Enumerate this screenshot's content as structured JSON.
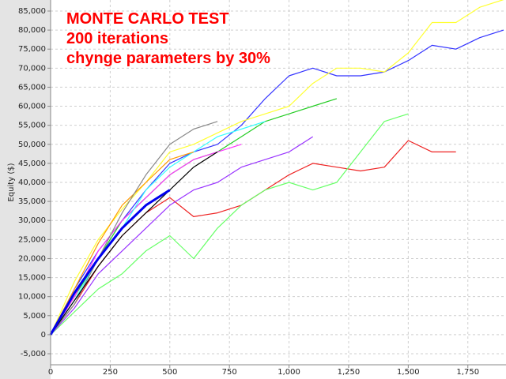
{
  "chart_data": {
    "type": "line",
    "title": "MONTE CARLO TEST",
    "annotations": [
      "200 iterations",
      "chynge parameters by 30%"
    ],
    "y_label": "Equity ($)",
    "x": [
      0,
      100,
      200,
      300,
      400,
      500,
      600,
      700,
      800,
      900,
      1000,
      1100,
      1200,
      1300,
      1400,
      1500,
      1600,
      1700,
      1800,
      1900
    ],
    "series": [
      {
        "color": "#3333ff",
        "values": [
          0,
          12000,
          22000,
          30000,
          38000,
          45000,
          48000,
          50000,
          55000,
          62000,
          68000,
          70000,
          68000,
          68000,
          69000,
          72000,
          76000,
          75000,
          78000,
          80000
        ]
      },
      {
        "color": "#ffff33",
        "values": [
          0,
          14000,
          25000,
          33000,
          40000,
          48000,
          50000,
          53000,
          56000,
          58000,
          60000,
          66000,
          70000,
          70000,
          69000,
          74000,
          82000,
          82000,
          86000,
          88000
        ]
      },
      {
        "color": "#ee2222",
        "values": [
          0,
          8000,
          18000,
          26000,
          32000,
          36000,
          31000,
          32000,
          34000,
          38000,
          42000,
          45000,
          44000,
          43000,
          44000,
          51000,
          48000,
          48000,
          null,
          null
        ]
      },
      {
        "color": "#66ff66",
        "values": [
          0,
          6000,
          12000,
          16000,
          22000,
          26000,
          20000,
          28000,
          34000,
          38000,
          40000,
          38000,
          40000,
          48000,
          56000,
          58000,
          null,
          null,
          null,
          null
        ]
      },
      {
        "color": "#22cc22",
        "values": [
          0,
          10000,
          20000,
          30000,
          36000,
          42000,
          46000,
          48000,
          52000,
          56000,
          58000,
          60000,
          62000,
          null,
          null,
          null,
          null,
          null,
          null,
          null
        ]
      },
      {
        "color": "#ff33ff",
        "values": [
          0,
          10000,
          22000,
          30000,
          36000,
          42000,
          46000,
          48000,
          50000,
          null,
          null,
          null,
          null,
          null,
          null,
          null,
          null,
          null,
          null,
          null
        ]
      },
      {
        "color": "#33ffff",
        "values": [
          0,
          9000,
          20000,
          28000,
          38000,
          44000,
          48000,
          52000,
          54000,
          56000,
          null,
          null,
          null,
          null,
          null,
          null,
          null,
          null,
          null,
          null
        ]
      },
      {
        "color": "#ff9900",
        "values": [
          0,
          12000,
          24000,
          34000,
          40000,
          46000,
          48000,
          null,
          null,
          null,
          null,
          null,
          null,
          null,
          null,
          null,
          null,
          null,
          null,
          null
        ]
      },
      {
        "color": "#888888",
        "values": [
          0,
          8000,
          20000,
          32000,
          42000,
          50000,
          54000,
          56000,
          null,
          null,
          null,
          null,
          null,
          null,
          null,
          null,
          null,
          null,
          null,
          null
        ]
      },
      {
        "color": "#000000",
        "values": [
          0,
          9000,
          18000,
          26000,
          32000,
          38000,
          44000,
          48000,
          null,
          null,
          null,
          null,
          null,
          null,
          null,
          null,
          null,
          null,
          null,
          null
        ]
      },
      {
        "color": "#9933ff",
        "values": [
          0,
          7000,
          16000,
          22000,
          28000,
          34000,
          38000,
          40000,
          44000,
          46000,
          48000,
          52000,
          null,
          null,
          null,
          null,
          null,
          null,
          null,
          null
        ]
      },
      {
        "color": "#0000ee",
        "width": 3,
        "values": [
          0,
          11000,
          20000,
          28000,
          34000,
          38000,
          null,
          null,
          null,
          null,
          null,
          null,
          null,
          null,
          null,
          null,
          null,
          null,
          null,
          null
        ]
      }
    ],
    "xlim": [
      0,
      1910
    ],
    "ylim": [
      -7900,
      87900
    ],
    "xticks": [
      0,
      250,
      500,
      750,
      {
        "value": 1000,
        "label": "1,000"
      },
      {
        "value": 1250,
        "label": "1,250"
      },
      {
        "value": 1500,
        "label": "1,500"
      },
      {
        "value": 1750,
        "label": "1,750"
      }
    ],
    "yticks": [
      {
        "value": -5000,
        "label": "-5,000"
      },
      0,
      {
        "value": 5000,
        "label": "5,000"
      },
      {
        "value": 10000,
        "label": "10,000"
      },
      {
        "value": 15000,
        "label": "15,000"
      },
      {
        "value": 20000,
        "label": "20,000"
      },
      {
        "value": 25000,
        "label": "25,000"
      },
      {
        "value": 30000,
        "label": "30,000"
      },
      {
        "value": 35000,
        "label": "35,000"
      },
      {
        "value": 40000,
        "label": "40,000"
      },
      {
        "value": 45000,
        "label": "45,000"
      },
      {
        "value": 50000,
        "label": "50,000"
      },
      {
        "value": 55000,
        "label": "55,000"
      },
      {
        "value": 60000,
        "label": "60,000"
      },
      {
        "value": 65000,
        "label": "65,000"
      },
      {
        "value": 70000,
        "label": "70,000"
      },
      {
        "value": 75000,
        "label": "75,000"
      },
      {
        "value": 80000,
        "label": "80,000"
      },
      {
        "value": 85000,
        "label": "85,000"
      }
    ],
    "grid": true
  }
}
